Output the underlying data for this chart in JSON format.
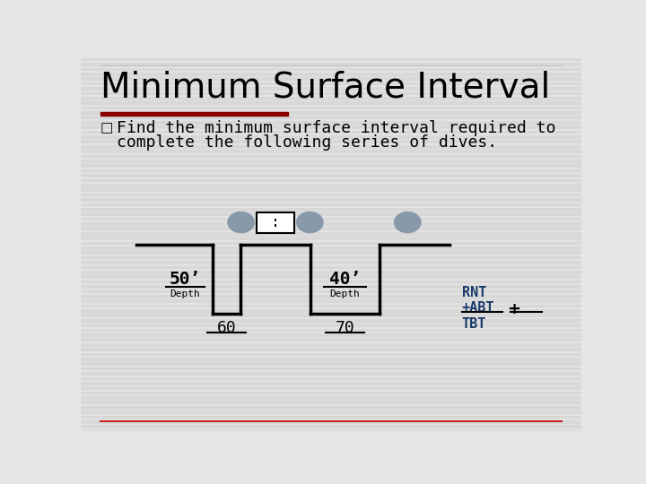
{
  "title": "Minimum Surface Interval",
  "title_fontsize": 28,
  "bullet_text_line1": "Find the minimum surface interval required to",
  "bullet_text_line2": "complete the following series of dives.",
  "bullet_fontsize": 13,
  "bg_color": "#e6e6e6",
  "title_underline_color": "#8B0000",
  "dive1_depth_label": "50’",
  "dive1_depth_sub": "Depth",
  "dive1_time": "60",
  "dive2_depth_label": "40’",
  "dive2_depth_sub": "Depth",
  "dive2_time": "70",
  "rnt_label": "RNT",
  "abt_label": "+ABT",
  "tbt_label": "TBT",
  "plus_sign": "+",
  "interval_box_text": ":",
  "blue_label_color": "#1a3a6b",
  "line_color": "#000000",
  "ellipse_color": "#8899AA",
  "box_color": "#ffffff",
  "bottom_line_color": "#cc2222",
  "stripe_color": "#d8d8d8"
}
